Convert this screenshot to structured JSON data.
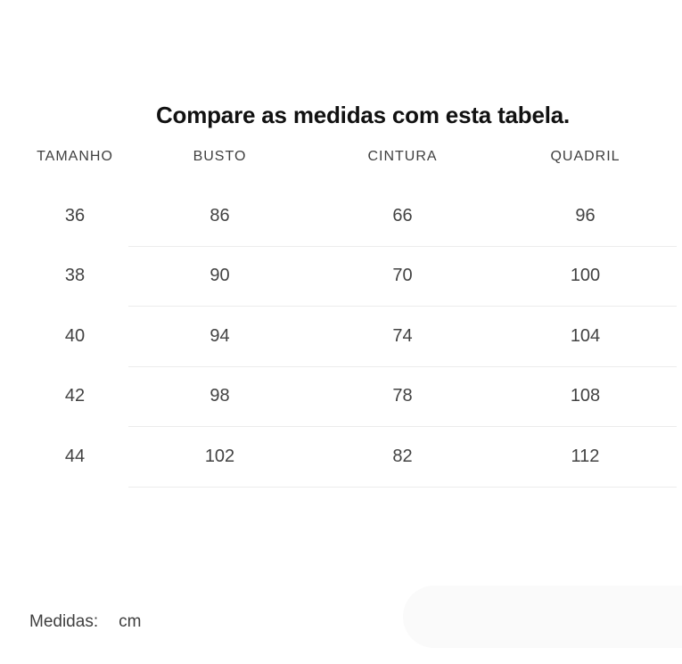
{
  "page": {
    "title": "Compare as medidas com esta tabela."
  },
  "table": {
    "columns": [
      "TAMANHO",
      "BUSTO",
      "CINTURA",
      "QUADRIL"
    ],
    "rows": [
      [
        "36",
        "86",
        "66",
        "96"
      ],
      [
        "38",
        "90",
        "70",
        "100"
      ],
      [
        "40",
        "94",
        "74",
        "104"
      ],
      [
        "42",
        "98",
        "78",
        "108"
      ],
      [
        "44",
        "102",
        "82",
        "112"
      ]
    ]
  },
  "footer": {
    "label": "Medidas:",
    "value": "cm"
  },
  "colors": {
    "title_text": "#111111",
    "body_text": "#424242",
    "header_text": "#3f3f3f",
    "divider": "#ececec",
    "pill_background": "#fafafa",
    "page_background": "#ffffff"
  }
}
